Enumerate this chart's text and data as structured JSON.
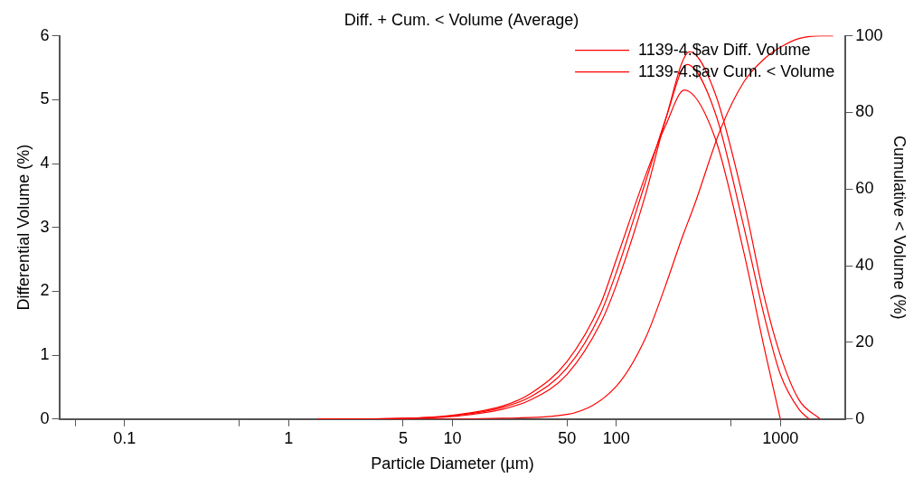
{
  "chart_data": {
    "type": "line",
    "title": "Diff. + Cum. < Volume (Average)",
    "xlabel": "Particle Diameter (µm)",
    "ylabel": "Differential Volume (%)",
    "y2label": "Cumulative < Volume (%)",
    "log": "x",
    "grid": false,
    "legend": "top right",
    "marker": "none",
    "line_style": "solid",
    "xlim": [
      0.04,
      2500
    ],
    "xticks": [
      {
        "value": 0.05,
        "label": null
      },
      0.1,
      {
        "value": 0.5,
        "label": null
      },
      1,
      5,
      10,
      50,
      100,
      {
        "value": 500,
        "label": null
      },
      1000
    ],
    "ylim": [
      0,
      6
    ],
    "yticks": [
      0,
      1,
      2,
      3,
      4,
      5,
      6
    ],
    "y2lim": [
      0,
      100
    ],
    "y2ticks": [
      0,
      20,
      40,
      60,
      80,
      100
    ],
    "series": [
      {
        "name": "1139-4.$av Diff. Volume",
        "color": "#ff0000",
        "x": [
          1.5,
          5,
          10,
          20,
          30,
          50,
          80,
          100,
          150,
          200,
          280,
          400,
          600,
          800,
          1000,
          1300,
          1750
        ],
        "values": [
          0,
          0.01,
          0.04,
          0.15,
          0.3,
          0.7,
          1.5,
          2.1,
          3.5,
          4.7,
          5.75,
          5.1,
          3.4,
          1.9,
          1,
          0.3,
          0
        ]
      },
      {
        "color": "#ff0000",
        "x": [
          1.5,
          5,
          10,
          20,
          30,
          50,
          80,
          100,
          150,
          200,
          270,
          400,
          600,
          800,
          1000,
          1300,
          1500
        ],
        "values": [
          0,
          0.01,
          0.05,
          0.18,
          0.35,
          0.8,
          1.65,
          2.3,
          3.7,
          4.7,
          5.55,
          4.8,
          3,
          1.6,
          0.7,
          0.15,
          0
        ]
      },
      {
        "color": "#ff0000",
        "x": [
          1.5,
          5,
          10,
          20,
          30,
          50,
          80,
          100,
          150,
          200,
          260,
          400,
          600,
          800,
          1000
        ],
        "values": [
          0,
          0.01,
          0.06,
          0.2,
          0.4,
          0.9,
          1.8,
          2.5,
          3.8,
          4.6,
          5.15,
          4.4,
          2.6,
          1.1,
          0
        ]
      },
      {
        "name": "1139-4.$av Cum. < Volume",
        "color": "#ff0000",
        "axis": "y2",
        "x": [
          1.5,
          10,
          20,
          50,
          100,
          150,
          200,
          250,
          300,
          435,
          600,
          800,
          1000,
          1300,
          1800,
          2100
        ],
        "values": [
          0,
          0,
          0.2,
          1.2,
          8.6,
          21,
          35,
          47,
          56,
          76,
          88,
          94,
          97,
          99.3,
          100,
          100
        ]
      }
    ]
  }
}
